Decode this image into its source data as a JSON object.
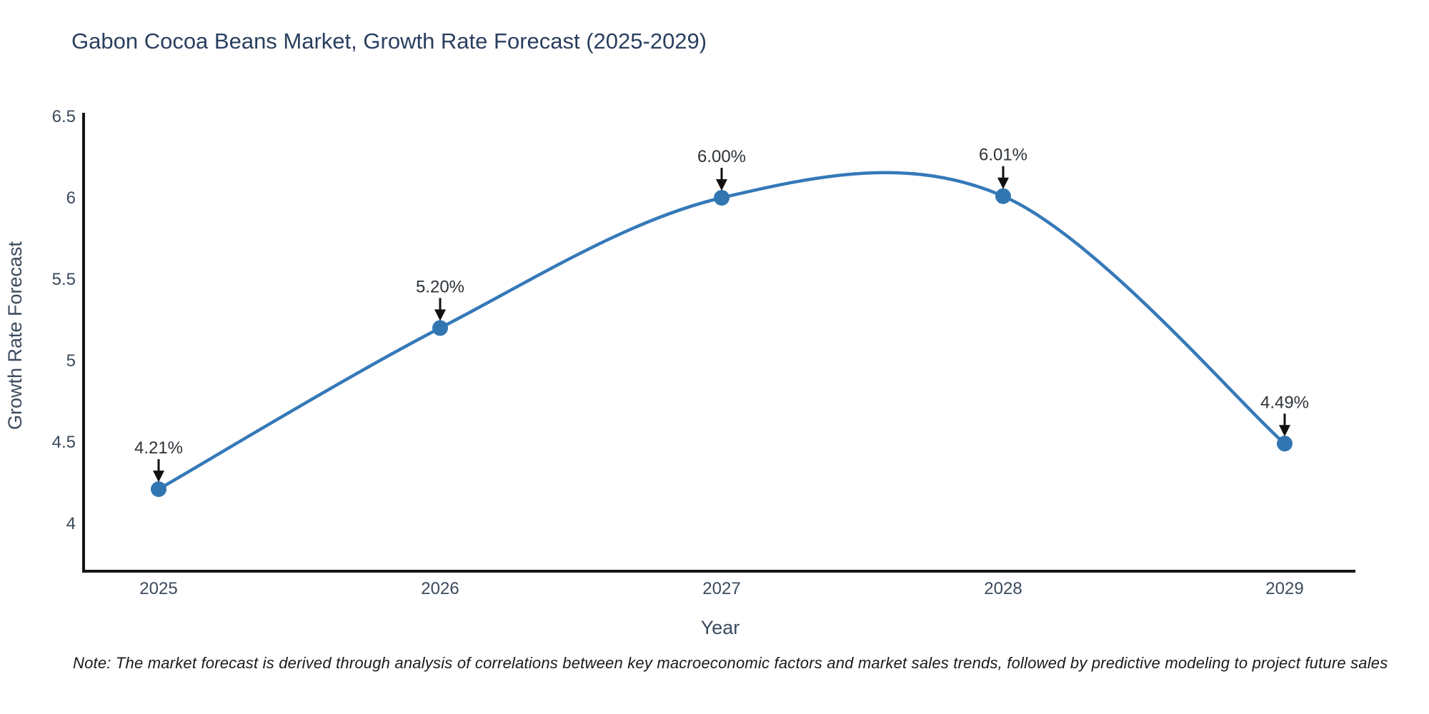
{
  "title": "Gabon Cocoa Beans Market, Growth Rate Forecast (2025-2029)",
  "footnote": "Note: The market forecast is derived through analysis of correlations between key macroeconomic factors and market sales trends, followed by predictive modeling to project future sales",
  "chart_data": {
    "type": "line",
    "title": "Gabon Cocoa Beans Market, Growth Rate Forecast (2025-2029)",
    "xlabel": "Year",
    "ylabel": "Growth Rate Forecast",
    "categories": [
      "2025",
      "2026",
      "2027",
      "2028",
      "2029"
    ],
    "series": [
      {
        "name": "Growth Rate Forecast",
        "values": [
          4.21,
          5.2,
          6.0,
          6.01,
          4.49
        ]
      }
    ],
    "point_labels": [
      "4.21%",
      "5.20%",
      "6.00%",
      "6.01%",
      "4.49%"
    ],
    "yticks": [
      "4",
      "4.5",
      "5",
      "5.5",
      "6",
      "6.5"
    ],
    "ytick_values": [
      4,
      4.5,
      5,
      5.5,
      6,
      6.5
    ],
    "ylim": [
      3.69,
      6.5
    ],
    "line_shape": "spline",
    "grid": false,
    "legend_position": "none",
    "annotation_arrows": true,
    "colors": {
      "line": "#3579b8",
      "marker": "#3276b1",
      "axis": "#151515",
      "tick_text": "#3b4a5c",
      "title_text": "#2a3f5f",
      "annotation_text": "#2e3338",
      "arrow": "#111111",
      "background": "#ffffff"
    }
  }
}
